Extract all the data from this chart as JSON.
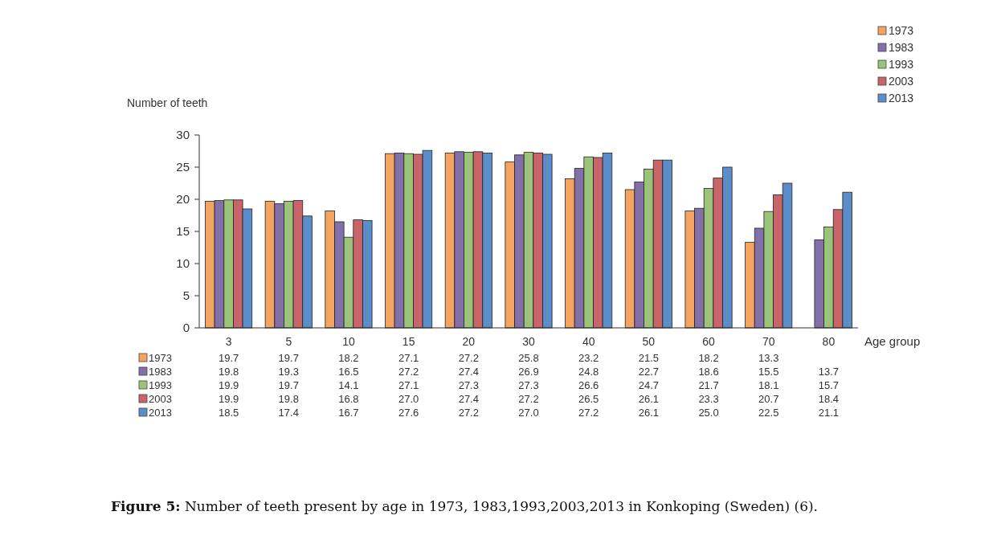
{
  "chart_data": {
    "type": "bar",
    "ylabel": "Number of teeth",
    "xlabel": "Age group",
    "categories": [
      "3",
      "5",
      "10",
      "15",
      "20",
      "30",
      "40",
      "50",
      "60",
      "70",
      "80"
    ],
    "series": [
      {
        "name": "1973",
        "color": "#f4a460",
        "values": [
          19.7,
          19.7,
          18.2,
          27.1,
          27.2,
          25.8,
          23.2,
          21.5,
          18.2,
          13.3,
          null
        ],
        "value_labels": [
          "19.7",
          "19.7",
          "18.2",
          "27.1",
          "27.2",
          "25.8",
          "23.2",
          "21.5",
          "18.2",
          "13.3",
          null
        ]
      },
      {
        "name": "1983",
        "color": "#8470a8",
        "values": [
          19.8,
          19.3,
          16.5,
          27.2,
          27.4,
          26.9,
          24.8,
          22.7,
          18.6,
          15.5,
          13.7
        ],
        "value_labels": [
          "19.8",
          "19.3",
          "16.5",
          "27.2",
          "27.4",
          "26.9",
          "24.8",
          "22.7",
          "18.6",
          "15.5",
          "13.7"
        ]
      },
      {
        "name": "1993",
        "color": "#9bc47a",
        "values": [
          19.9,
          19.7,
          14.1,
          27.1,
          27.3,
          27.3,
          26.6,
          24.7,
          21.7,
          18.1,
          15.7
        ],
        "value_labels": [
          "19.9",
          "19.7",
          "14.1",
          "27.1",
          "27.3",
          "27.3",
          "26.6",
          "24.7",
          "21.7",
          "18.1",
          "15.7"
        ]
      },
      {
        "name": "2003",
        "color": "#c8646a",
        "values": [
          19.9,
          19.8,
          16.8,
          27.0,
          27.4,
          27.2,
          26.5,
          26.1,
          23.3,
          20.7,
          18.4
        ],
        "value_labels": [
          "19.9",
          "19.8",
          "16.8",
          "27.0",
          "27.4",
          "27.2",
          "26.5",
          "26.1",
          "23.3",
          "20.7",
          "18.4"
        ]
      },
      {
        "name": "2013",
        "color": "#5b8ec8",
        "values": [
          18.5,
          17.4,
          16.7,
          27.6,
          27.2,
          27.0,
          27.2,
          26.1,
          25.0,
          22.5,
          21.1
        ],
        "value_labels": [
          "18.5",
          "17.4",
          "16.7",
          "27.6",
          "27.2",
          "27.0",
          "27.2",
          "26.1",
          "25.0",
          "22.5",
          "21.1"
        ]
      }
    ],
    "ylim": [
      0,
      30
    ],
    "yticks": [
      0,
      5,
      10,
      15,
      20,
      25,
      30
    ],
    "grid": false,
    "legend": "top right",
    "annotations": [
      "Figure 5: Number of teeth present by age in 1973, 1983,1993,2003,2013 in Konkoping (Sweden) (6)."
    ]
  }
}
